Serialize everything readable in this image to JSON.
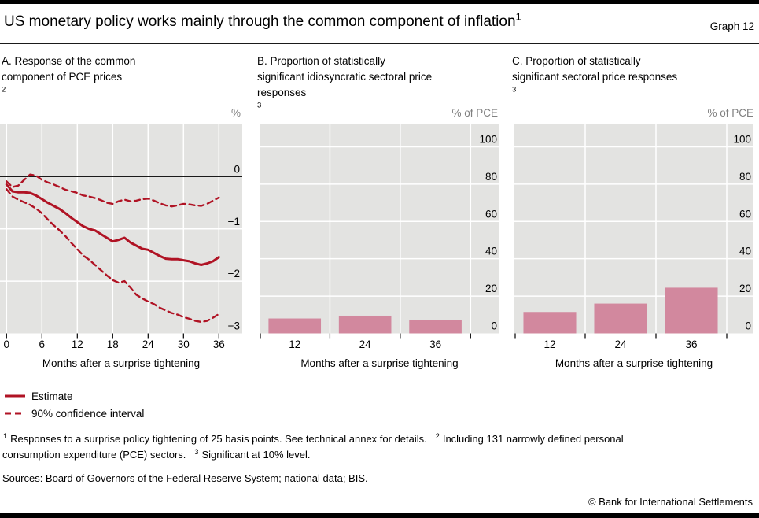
{
  "header": {
    "title": "US monetary policy works mainly through the common component of inflation",
    "title_sup": "1",
    "graph_label": "Graph 12"
  },
  "panels": [
    {
      "key": "A",
      "title_lines": [
        "A. Response of the common",
        "component of PCE prices"
      ],
      "title_sup": "2",
      "unit": "%",
      "xlabel": "Months after a surprise tightening"
    },
    {
      "key": "B",
      "title_lines": [
        "B. Proportion of statistically",
        "significant idiosyncratic sectoral price",
        "responses"
      ],
      "title_sup": "3",
      "unit": "% of PCE",
      "xlabel": "Months after a surprise tightening"
    },
    {
      "key": "C",
      "title_lines": [
        "C. Proportion of statistically",
        "significant sectoral price responses"
      ],
      "title_sup": "3",
      "unit": "% of PCE",
      "xlabel": "Months after a surprise tightening"
    }
  ],
  "legend": [
    {
      "label": "Estimate",
      "style": "solid"
    },
    {
      "label": "90% confidence interval",
      "style": "dashed"
    }
  ],
  "footnotes": {
    "line1": [
      {
        "sup": "1",
        "text": "Responses to a surprise policy tightening of 25 basis points. See technical annex for details."
      },
      {
        "sup": "2",
        "text": "Including 131 narrowly defined personal"
      }
    ],
    "line2": [
      {
        "sup": "",
        "text": "consumption expenditure (PCE) sectors."
      },
      {
        "sup": "3",
        "text": "Significant at 10% level."
      }
    ]
  },
  "sources": "Sources: Board of Governors of the Federal Reserve System; national data; BIS.",
  "copyright": "© Bank for International Settlements",
  "colors": {
    "line_red": "#b01324",
    "bar_pink": "#d2889e",
    "plot_bg": "#e3e3e1",
    "grid": "#ffffff",
    "zero_line": "#1a1a1a",
    "tick": "#000000",
    "unit_label": "#808080"
  },
  "chart_data": [
    {
      "id": "chart-a",
      "type": "line",
      "title": "A. Response of the common component of PCE prices",
      "xlabel": "Months after a surprise tightening",
      "ylabel": "%",
      "x": [
        0,
        1,
        2,
        3,
        4,
        5,
        6,
        7,
        8,
        9,
        10,
        11,
        12,
        13,
        14,
        15,
        16,
        17,
        18,
        19,
        20,
        21,
        22,
        23,
        24,
        25,
        26,
        27,
        28,
        29,
        30,
        31,
        32,
        33,
        34,
        35,
        36
      ],
      "series": [
        {
          "name": "Estimate",
          "style": "solid",
          "values": [
            -0.15,
            -0.28,
            -0.3,
            -0.3,
            -0.31,
            -0.36,
            -0.43,
            -0.5,
            -0.56,
            -0.62,
            -0.7,
            -0.79,
            -0.87,
            -0.95,
            -1.0,
            -1.03,
            -1.1,
            -1.17,
            -1.24,
            -1.21,
            -1.17,
            -1.26,
            -1.32,
            -1.38,
            -1.4,
            -1.46,
            -1.52,
            -1.57,
            -1.58,
            -1.58,
            -1.6,
            -1.62,
            -1.66,
            -1.69,
            -1.66,
            -1.62,
            -1.54
          ]
        },
        {
          "name": "90% confidence interval (upper)",
          "style": "dashed",
          "values": [
            -0.09,
            -0.2,
            -0.17,
            -0.06,
            0.04,
            0.02,
            -0.06,
            -0.11,
            -0.15,
            -0.2,
            -0.25,
            -0.28,
            -0.31,
            -0.36,
            -0.38,
            -0.41,
            -0.45,
            -0.5,
            -0.52,
            -0.47,
            -0.44,
            -0.47,
            -0.46,
            -0.43,
            -0.42,
            -0.46,
            -0.51,
            -0.55,
            -0.57,
            -0.55,
            -0.52,
            -0.53,
            -0.55,
            -0.56,
            -0.52,
            -0.46,
            -0.4
          ]
        },
        {
          "name": "90% confidence interval (lower)",
          "style": "dashed",
          "values": [
            -0.24,
            -0.38,
            -0.44,
            -0.49,
            -0.54,
            -0.61,
            -0.7,
            -0.82,
            -0.93,
            -1.03,
            -1.14,
            -1.27,
            -1.39,
            -1.51,
            -1.59,
            -1.69,
            -1.79,
            -1.89,
            -1.98,
            -2.03,
            -2.0,
            -2.12,
            -2.26,
            -2.33,
            -2.39,
            -2.44,
            -2.51,
            -2.56,
            -2.61,
            -2.64,
            -2.69,
            -2.72,
            -2.76,
            -2.78,
            -2.76,
            -2.7,
            -2.63
          ]
        }
      ],
      "ylim": [
        -3,
        1
      ],
      "yticks": [
        0,
        -1,
        -2,
        -3
      ],
      "xticks": [
        0,
        6,
        12,
        18,
        24,
        30,
        36
      ],
      "zero_line": true,
      "grid": true,
      "legend_position": "below-left"
    },
    {
      "id": "chart-b",
      "type": "bar",
      "title": "B. Proportion of statistically significant idiosyncratic sectoral price responses",
      "xlabel": "Months after a surprise tightening",
      "ylabel": "% of PCE",
      "categories": [
        "12",
        "24",
        "36"
      ],
      "values": [
        8,
        9.5,
        7
      ],
      "ylim": [
        0,
        112
      ],
      "yticks": [
        0,
        20,
        40,
        60,
        80,
        100
      ],
      "grid": true
    },
    {
      "id": "chart-c",
      "type": "bar",
      "title": "C. Proportion of statistically significant sectoral price responses",
      "xlabel": "Months after a surprise tightening",
      "ylabel": "% of PCE",
      "categories": [
        "12",
        "24",
        "36"
      ],
      "values": [
        11.5,
        16,
        24.5
      ],
      "ylim": [
        0,
        112
      ],
      "yticks": [
        0,
        20,
        40,
        60,
        80,
        100
      ],
      "grid": true
    }
  ]
}
